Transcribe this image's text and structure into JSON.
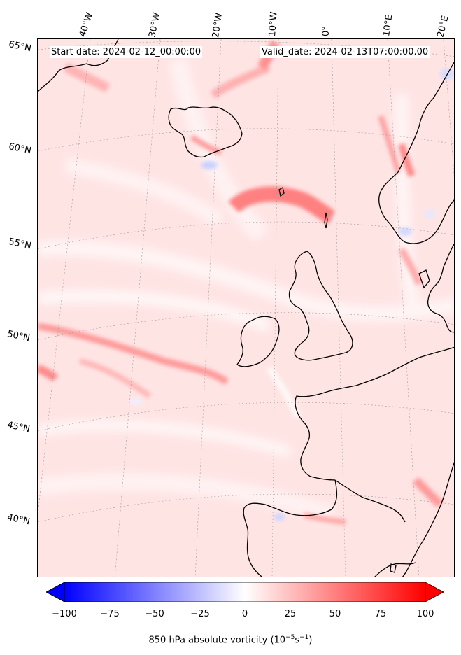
{
  "map": {
    "start_date": "Start date: 2024-02-12_00:00:00",
    "valid_date": "Valid_date: 2024-02-13T07:00:00.00",
    "longitude_labels": [
      "40°W",
      "30°W",
      "20°W",
      "10°W",
      "0°",
      "10°E",
      "20°E"
    ],
    "latitude_labels": [
      "65°N",
      "60°N",
      "55°N",
      "50°N",
      "45°N",
      "40°N"
    ],
    "field": "850 hPa absolute vorticity",
    "projection": "conic",
    "region": "North Atlantic / Western Europe",
    "colormap": "bwr"
  },
  "colorbar": {
    "label": "850 hPa absolute vorticity (10",
    "label_exp1": "−5",
    "label_mid": "s",
    "label_exp2": "−1",
    "label_end": ")",
    "min": -100,
    "max": 100,
    "ticks": [
      "−100",
      "−75",
      "−50",
      "−25",
      "0",
      "25",
      "50",
      "75",
      "100"
    ],
    "colors": {
      "negative": "#0000ff",
      "zero": "#ffffff",
      "positive": "#ff0000"
    }
  }
}
